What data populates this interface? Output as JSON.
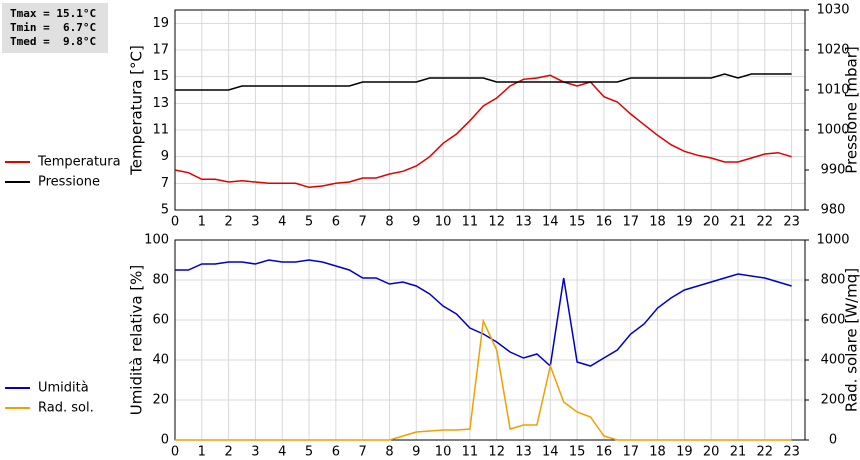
{
  "chart_data": [
    {
      "type": "line",
      "annotations": [
        "Tmax = 15.1°C",
        "Tmin =  6.7°C",
        "Tmed =  9.8°C"
      ],
      "ylabel": "Temperatura [°C]",
      "y2label": "Pressione [mbar]",
      "x": [
        0,
        0.5,
        1,
        1.5,
        2,
        2.5,
        3,
        3.5,
        4,
        4.5,
        5,
        5.5,
        6,
        6.5,
        7,
        7.5,
        8,
        8.5,
        9,
        9.5,
        10,
        10.5,
        11,
        11.5,
        12,
        12.5,
        13,
        13.5,
        14,
        14.5,
        15,
        15.5,
        16,
        16.5,
        17,
        17.5,
        18,
        18.5,
        19,
        19.5,
        20,
        20.5,
        21,
        21.5,
        22,
        22.5,
        23
      ],
      "xlim": [
        0,
        23.5
      ],
      "xticks": [
        0,
        1,
        2,
        3,
        4,
        5,
        6,
        7,
        8,
        9,
        10,
        11,
        12,
        13,
        14,
        15,
        16,
        17,
        18,
        19,
        20,
        21,
        22,
        23
      ],
      "ylim": [
        5,
        20
      ],
      "yticks": [
        5,
        7,
        9,
        11,
        13,
        15,
        17,
        19
      ],
      "y2lim": [
        980,
        1030
      ],
      "y2ticks": [
        980,
        990,
        1000,
        1010,
        1020,
        1030
      ],
      "grid": true,
      "legend": "left",
      "series": [
        {
          "name": "Temperatura",
          "color": "#e00000",
          "values": [
            8.0,
            7.8,
            7.3,
            7.3,
            7.1,
            7.2,
            7.1,
            7.0,
            7.0,
            7.0,
            6.7,
            6.8,
            7.0,
            7.1,
            7.4,
            7.4,
            7.7,
            7.9,
            8.3,
            9.0,
            10.0,
            10.7,
            11.7,
            12.8,
            13.4,
            14.3,
            14.8,
            14.9,
            15.1,
            14.6,
            14.3,
            14.6,
            13.5,
            13.1,
            12.2,
            11.4,
            10.6,
            9.9,
            9.4,
            9.1,
            8.9,
            8.6,
            8.6,
            8.9,
            9.2,
            9.3,
            9.0
          ]
        },
        {
          "name": "Pressione",
          "color": "#000000",
          "axis": "y2",
          "values": [
            1010,
            1010,
            1010,
            1010,
            1010,
            1011,
            1011,
            1011,
            1011,
            1011,
            1011,
            1011,
            1011,
            1011,
            1012,
            1012,
            1012,
            1012,
            1012,
            1013,
            1013,
            1013,
            1013,
            1013,
            1012,
            1012,
            1012,
            1012,
            1012,
            1012,
            1012,
            1012,
            1012,
            1012,
            1013,
            1013,
            1013,
            1013,
            1013,
            1013,
            1013,
            1014,
            1013,
            1014,
            1014,
            1014,
            1014
          ]
        }
      ]
    },
    {
      "type": "line",
      "ylabel": "Umidità relativa [%]",
      "y2label": "Rad. solare [W/mq]",
      "x": [
        0,
        0.5,
        1,
        1.5,
        2,
        2.5,
        3,
        3.5,
        4,
        4.5,
        5,
        5.5,
        6,
        6.5,
        7,
        7.5,
        8,
        8.5,
        9,
        9.5,
        10,
        10.5,
        11,
        11.5,
        12,
        12.5,
        13,
        13.5,
        14,
        14.5,
        15,
        15.5,
        16,
        16.5,
        17,
        17.5,
        18,
        18.5,
        19,
        19.5,
        20,
        20.5,
        21,
        21.5,
        22,
        22.5,
        23
      ],
      "xlim": [
        0,
        23.5
      ],
      "xticks": [
        0,
        1,
        2,
        3,
        4,
        5,
        6,
        7,
        8,
        9,
        10,
        11,
        12,
        13,
        14,
        15,
        16,
        17,
        18,
        19,
        20,
        21,
        22,
        23
      ],
      "ylim": [
        0,
        100
      ],
      "yticks": [
        0,
        20,
        40,
        60,
        80,
        100
      ],
      "y2lim": [
        0,
        1000
      ],
      "y2ticks": [
        0,
        200,
        400,
        600,
        800,
        1000
      ],
      "grid": true,
      "legend": "left",
      "series": [
        {
          "name": "Umidità",
          "color": "#0000cc",
          "values": [
            85,
            85,
            88,
            88,
            89,
            89,
            88,
            90,
            89,
            89,
            90,
            89,
            87,
            85,
            81,
            81,
            78,
            79,
            77,
            73,
            67,
            63,
            56,
            53,
            49,
            44,
            41,
            43,
            37,
            81,
            39,
            37,
            41,
            45,
            53,
            58,
            66,
            71,
            75,
            77,
            79,
            81,
            83,
            82,
            81,
            79,
            77
          ]
        },
        {
          "name": "Rad. sol.",
          "color": "#f0a000",
          "axis": "y2",
          "values": [
            0,
            0,
            0,
            0,
            0,
            0,
            0,
            0,
            0,
            0,
            0,
            0,
            0,
            0,
            0,
            0,
            0,
            20,
            40,
            45,
            50,
            50,
            55,
            595,
            450,
            55,
            75,
            75,
            370,
            190,
            140,
            115,
            20,
            0,
            0,
            0,
            0,
            0,
            0,
            0,
            0,
            0,
            0,
            0,
            0,
            0,
            0
          ]
        }
      ]
    }
  ]
}
